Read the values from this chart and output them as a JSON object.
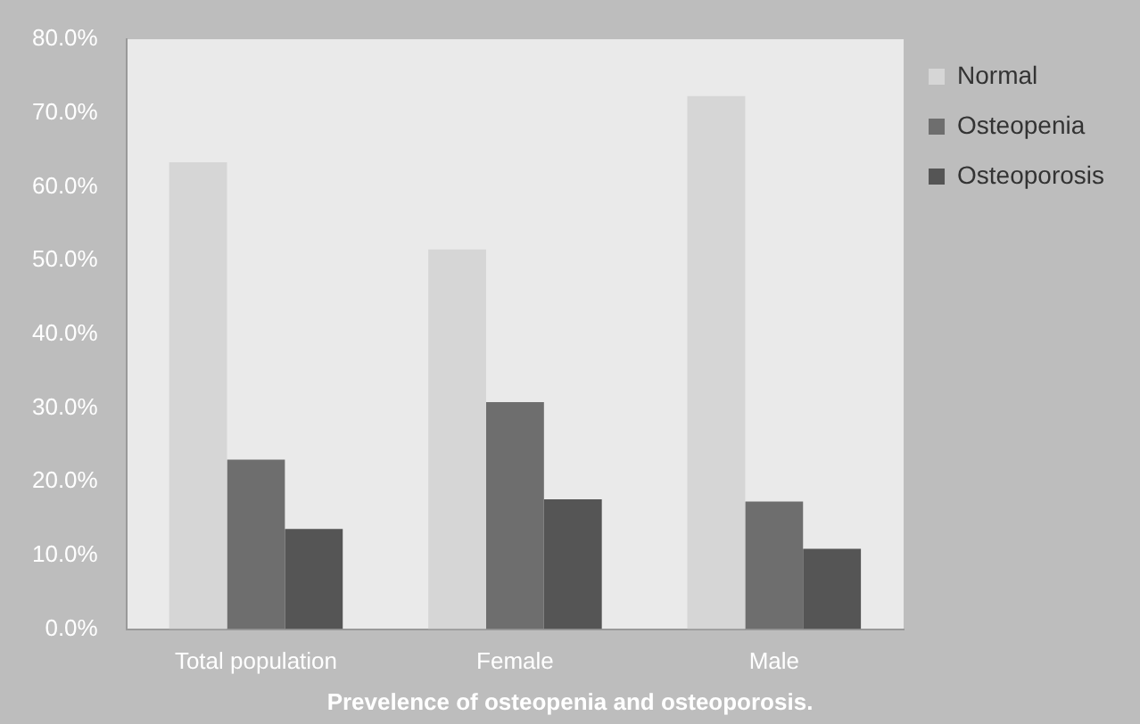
{
  "chart_data": {
    "type": "bar",
    "title": "Prevelence of osteopenia and osteoporosis.",
    "categories": [
      "Total population",
      "Female",
      "Male"
    ],
    "series": [
      {
        "name": "Normal",
        "color": "#d6d6d6",
        "values": [
          63.3,
          51.5,
          72.3
        ]
      },
      {
        "name": "Osteopenia",
        "color": "#6e6e6e",
        "values": [
          23.0,
          30.8,
          17.3
        ]
      },
      {
        "name": "Osteoporosis",
        "color": "#555555",
        "values": [
          13.6,
          17.6,
          10.9
        ]
      }
    ],
    "ylim": [
      0,
      80
    ],
    "yticks": [
      {
        "value": 0,
        "label": "0.0%"
      },
      {
        "value": 10,
        "label": "10.0%"
      },
      {
        "value": 20,
        "label": "20.0%"
      },
      {
        "value": 30,
        "label": "30.0%"
      },
      {
        "value": 40,
        "label": "40.0%"
      },
      {
        "value": 50,
        "label": "50.0%"
      },
      {
        "value": 60,
        "label": "60.0%"
      },
      {
        "value": 70,
        "label": "70.0%"
      },
      {
        "value": 80,
        "label": "80.0%"
      }
    ],
    "grid": false,
    "legend": "top right"
  }
}
